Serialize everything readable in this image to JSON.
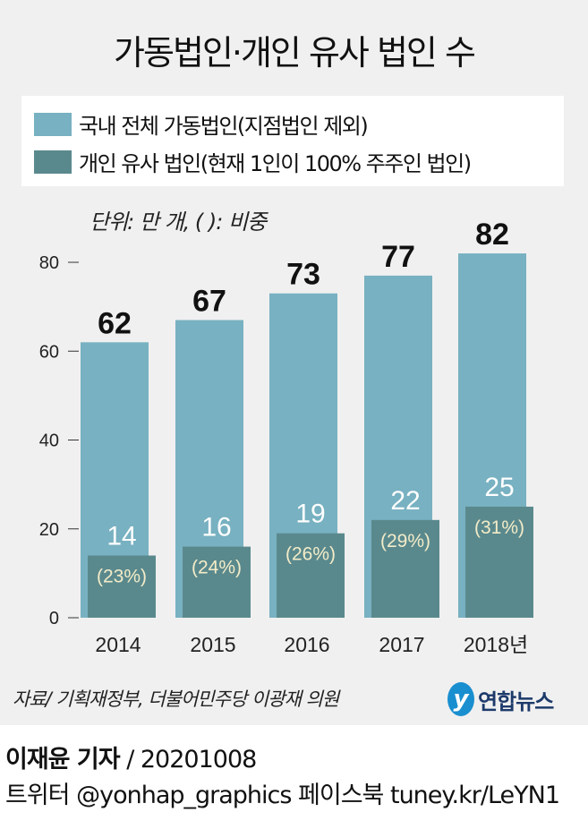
{
  "title": "가동법인·개인 유사 법인 수",
  "unit_note": "단위: 만 개, (  ): 비중",
  "colors": {
    "total": "#78b1c1",
    "individual": "#5a898d",
    "pct_text": "#f3ecc8"
  },
  "chart_data": {
    "type": "bar",
    "title": "가동법인·개인 유사 법인 수",
    "categories": [
      "2014",
      "2015",
      "2016",
      "2017",
      "2018년"
    ],
    "series": [
      {
        "name": "국내 전체 가동법인(지점법인 제외)",
        "values": [
          62,
          67,
          73,
          77,
          82
        ]
      },
      {
        "name": "개인 유사 법인(현재 1인이 100% 주주인 법인)",
        "values": [
          14,
          16,
          19,
          22,
          25
        ],
        "share_labels": [
          "(23%)",
          "(24%)",
          "(26%)",
          "(29%)",
          "(31%)"
        ]
      }
    ],
    "yticks": [
      "0",
      "20",
      "40",
      "60",
      "80"
    ],
    "ylim": [
      0,
      80
    ],
    "grid": false,
    "legend": "top"
  },
  "source": "자료/ 기획재정부, 더불어민주당 이광재 의원",
  "logo": "연합뉴스",
  "reporter": "이재윤 기자",
  "date": " / 20201008",
  "social": "트위터 @yonhap_graphics  페이스북 tuney.kr/LeYN1"
}
